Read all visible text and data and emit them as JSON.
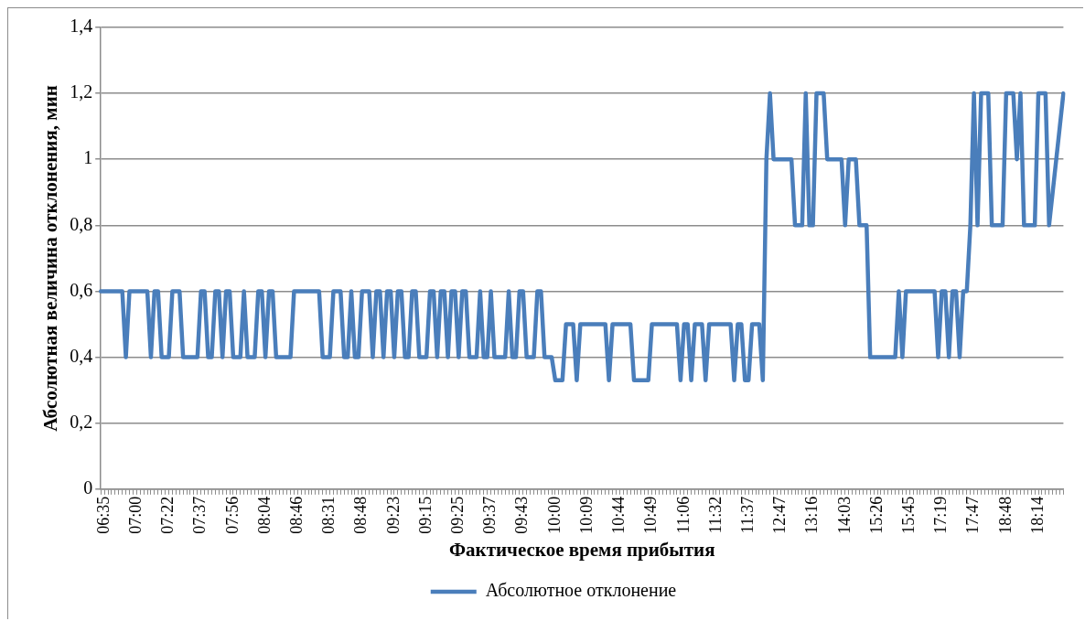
{
  "chart_data": {
    "type": "line",
    "xlabel": "Фактическое время прибытия",
    "ylabel": "Абсолютная величина отклонения, мин",
    "categories": [
      null,
      "06:35",
      null,
      null,
      null,
      null,
      null,
      null,
      null,
      null,
      "07:00",
      null,
      null,
      null,
      null,
      null,
      null,
      null,
      null,
      "07:22",
      null,
      null,
      null,
      null,
      null,
      null,
      null,
      null,
      "07:37",
      null,
      null,
      null,
      null,
      null,
      null,
      null,
      null,
      "07:56",
      null,
      null,
      null,
      null,
      null,
      null,
      null,
      null,
      "08:04",
      null,
      null,
      null,
      null,
      null,
      null,
      null,
      null,
      "08:46",
      null,
      null,
      null,
      null,
      null,
      null,
      null,
      null,
      "08:31",
      null,
      null,
      null,
      null,
      null,
      null,
      null,
      null,
      "08:48",
      null,
      null,
      null,
      null,
      null,
      null,
      null,
      null,
      "09:23",
      null,
      null,
      null,
      null,
      null,
      null,
      null,
      null,
      "09:15",
      null,
      null,
      null,
      null,
      null,
      null,
      null,
      null,
      "09:25",
      null,
      null,
      null,
      null,
      null,
      null,
      null,
      null,
      "09:37",
      null,
      null,
      null,
      null,
      null,
      null,
      null,
      null,
      "09:43",
      null,
      null,
      null,
      null,
      null,
      null,
      null,
      null,
      "10:00",
      null,
      null,
      null,
      null,
      null,
      null,
      null,
      null,
      "10:09",
      null,
      null,
      null,
      null,
      null,
      null,
      null,
      null,
      "10:44",
      null,
      null,
      null,
      null,
      null,
      null,
      null,
      null,
      "10:49",
      null,
      null,
      null,
      null,
      null,
      null,
      null,
      null,
      "11:06",
      null,
      null,
      null,
      null,
      null,
      null,
      null,
      null,
      "11:32",
      null,
      null,
      null,
      null,
      null,
      null,
      null,
      null,
      "11:37",
      null,
      null,
      null,
      null,
      null,
      null,
      null,
      null,
      "12:47",
      null,
      null,
      null,
      null,
      null,
      null,
      null,
      null,
      "13:16",
      null,
      null,
      null,
      null,
      null,
      null,
      null,
      null,
      "14:03",
      null,
      null,
      null,
      null,
      null,
      null,
      null,
      null,
      "15:26",
      null,
      null,
      null,
      null,
      null,
      null,
      null,
      null,
      "15:45",
      null,
      null,
      null,
      null,
      null,
      null,
      null,
      null,
      "17:19",
      null,
      null,
      null,
      null,
      null,
      null,
      null,
      null,
      "17:47",
      null,
      null,
      null,
      null,
      null,
      null,
      null,
      null,
      "18:48",
      null,
      null,
      null,
      null,
      null,
      null,
      null,
      null,
      "18:14",
      null,
      null,
      null,
      null,
      null,
      null,
      null
    ],
    "series": [
      {
        "name": "Абсолютное отклонение",
        "color": "#4a7ebb",
        "values": [
          0.6,
          0.6,
          0.6,
          0.6,
          0.6,
          0.6,
          0.6,
          0.4,
          0.6,
          0.6,
          0.6,
          0.6,
          0.6,
          0.6,
          0.4,
          0.6,
          0.6,
          0.4,
          0.4,
          0.4,
          0.6,
          0.6,
          0.6,
          0.4,
          0.4,
          0.4,
          0.4,
          0.4,
          0.6,
          0.6,
          0.4,
          0.4,
          0.6,
          0.6,
          0.4,
          0.6,
          0.6,
          0.4,
          0.4,
          0.4,
          0.6,
          0.4,
          0.4,
          0.4,
          0.6,
          0.6,
          0.4,
          0.6,
          0.6,
          0.4,
          0.4,
          0.4,
          0.4,
          0.4,
          0.6,
          0.6,
          0.6,
          0.6,
          0.6,
          0.6,
          0.6,
          0.6,
          0.4,
          0.4,
          0.4,
          0.6,
          0.6,
          0.6,
          0.4,
          0.4,
          0.6,
          0.4,
          0.4,
          0.6,
          0.6,
          0.6,
          0.4,
          0.6,
          0.6,
          0.4,
          0.6,
          0.6,
          0.4,
          0.6,
          0.6,
          0.4,
          0.4,
          0.6,
          0.6,
          0.4,
          0.4,
          0.4,
          0.6,
          0.6,
          0.4,
          0.6,
          0.6,
          0.4,
          0.6,
          0.6,
          0.4,
          0.6,
          0.6,
          0.4,
          0.4,
          0.4,
          0.6,
          0.4,
          0.4,
          0.6,
          0.4,
          0.4,
          0.4,
          0.4,
          0.6,
          0.4,
          0.4,
          0.6,
          0.6,
          0.4,
          0.4,
          0.4,
          0.6,
          0.6,
          0.4,
          0.4,
          0.4,
          0.33,
          0.33,
          0.33,
          0.5,
          0.5,
          0.5,
          0.33,
          0.5,
          0.5,
          0.5,
          0.5,
          0.5,
          0.5,
          0.5,
          0.5,
          0.33,
          0.5,
          0.5,
          0.5,
          0.5,
          0.5,
          0.5,
          0.33,
          0.33,
          0.33,
          0.33,
          0.33,
          0.5,
          0.5,
          0.5,
          0.5,
          0.5,
          0.5,
          0.5,
          0.5,
          0.33,
          0.5,
          0.5,
          0.33,
          0.5,
          0.5,
          0.5,
          0.33,
          0.5,
          0.5,
          0.5,
          0.5,
          0.5,
          0.5,
          0.5,
          0.33,
          0.5,
          0.5,
          0.33,
          0.33,
          0.5,
          0.5,
          0.5,
          0.33,
          1,
          1.2,
          1,
          1,
          1,
          1,
          1,
          1,
          0.8,
          0.8,
          0.8,
          1.2,
          0.8,
          0.8,
          1.2,
          1.2,
          1.2,
          1,
          1,
          1,
          1,
          1,
          0.8,
          1,
          1,
          1,
          0.8,
          0.8,
          0.8,
          0.4,
          0.4,
          0.4,
          0.4,
          0.4,
          0.4,
          0.4,
          0.4,
          0.6,
          0.4,
          0.6,
          0.6,
          0.6,
          0.6,
          0.6,
          0.6,
          0.6,
          0.6,
          0.6,
          0.4,
          0.6,
          0.6,
          0.4,
          0.6,
          0.6,
          0.4,
          0.6,
          0.6,
          0.8,
          1.2,
          0.8,
          1.2,
          1.2,
          1.2,
          0.8,
          0.8,
          0.8,
          0.8,
          1.2,
          1.2,
          1.2,
          1,
          1.2,
          0.8,
          0.8,
          0.8,
          0.8,
          1.2,
          1.2,
          1.2,
          0.8,
          0.9,
          1,
          1.1,
          1.2
        ]
      }
    ],
    "ylim": [
      0,
      1.4
    ],
    "yticks": [
      0,
      {
        "value": 0.2,
        "label": "0,2"
      },
      {
        "value": 0.4,
        "label": "0,4"
      },
      {
        "value": 0.6,
        "label": "0,6"
      },
      {
        "value": 0.8,
        "label": "0,8"
      },
      1,
      {
        "value": 1.2,
        "label": "1,2"
      },
      {
        "value": 1.4,
        "label": "1,4"
      }
    ],
    "grid": "y",
    "legend": "bottom",
    "marker": "none",
    "line_style": "solid"
  }
}
